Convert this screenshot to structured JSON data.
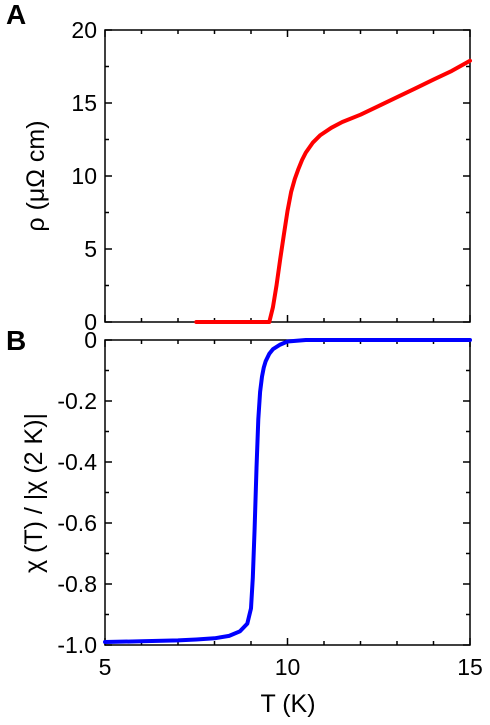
{
  "chart_data": [
    {
      "type": "line",
      "panel": "A",
      "ylabel": "ρ (μΩ cm)",
      "xlim": [
        5,
        15
      ],
      "ylim": [
        0,
        20
      ],
      "yticks": [
        "0",
        "5",
        "10",
        "15",
        "20"
      ],
      "grid": false,
      "color": "#ff0000",
      "series": [
        {
          "x": [
            7.5,
            8.0,
            8.5,
            9.0,
            9.3,
            9.5,
            9.6,
            9.7,
            9.8,
            9.9,
            10.0,
            10.1,
            10.2,
            10.3,
            10.4,
            10.5,
            10.7,
            10.9,
            11.2,
            11.5,
            12.0,
            12.5,
            13.0,
            13.5,
            14.0,
            14.5,
            15.0
          ],
          "y": [
            0,
            0,
            0,
            0,
            0,
            0,
            1.0,
            2.5,
            4.3,
            6.0,
            7.6,
            8.9,
            9.8,
            10.5,
            11.1,
            11.6,
            12.3,
            12.8,
            13.3,
            13.7,
            14.2,
            14.8,
            15.4,
            16.0,
            16.6,
            17.2,
            17.9
          ]
        }
      ]
    },
    {
      "type": "line",
      "panel": "B",
      "ylabel": "χ (T) / |χ (2 K)|",
      "xlabel": "T (K)",
      "xlim": [
        5,
        15
      ],
      "ylim": [
        -1.0,
        0
      ],
      "xticks": [
        "5",
        "10",
        "15"
      ],
      "yticks": [
        "0",
        "-0.2",
        "-0.4",
        "-0.6",
        "-0.8",
        "-1.0"
      ],
      "grid": false,
      "color": "#0000ff",
      "series": [
        {
          "x": [
            5.0,
            6.0,
            7.0,
            7.5,
            8.0,
            8.4,
            8.7,
            8.9,
            9.0,
            9.05,
            9.1,
            9.15,
            9.2,
            9.25,
            9.3,
            9.35,
            9.4,
            9.5,
            9.6,
            9.8,
            10.0,
            10.5,
            11.0,
            12.0,
            13.0,
            14.0,
            15.0
          ],
          "y": [
            -0.99,
            -0.988,
            -0.985,
            -0.982,
            -0.978,
            -0.97,
            -0.955,
            -0.93,
            -0.88,
            -0.78,
            -0.62,
            -0.42,
            -0.26,
            -0.17,
            -0.12,
            -0.09,
            -0.07,
            -0.045,
            -0.03,
            -0.015,
            -0.005,
            0.0,
            0.0,
            0.0,
            0.0,
            0.0,
            0.0
          ]
        }
      ]
    }
  ]
}
